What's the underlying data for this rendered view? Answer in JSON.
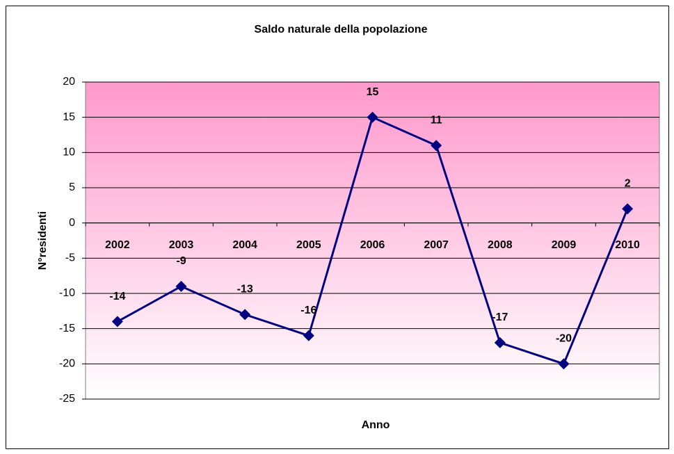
{
  "chart_data": {
    "type": "line",
    "title": "Saldo naturale della popolazione",
    "x_label": "Anno",
    "y_label": "N°residenti",
    "categories": [
      "2002",
      "2003",
      "2004",
      "2005",
      "2006",
      "2007",
      "2008",
      "2009",
      "2010"
    ],
    "series": [
      {
        "name": "Saldo naturale",
        "color": "#000080",
        "values": [
          -14,
          -9,
          -13,
          -16,
          15,
          11,
          -17,
          -20,
          2
        ]
      }
    ],
    "ylim": [
      -25,
      20
    ],
    "yticks": [
      -25,
      -20,
      -15,
      -10,
      -5,
      0,
      5,
      10,
      15,
      20
    ],
    "grid": true
  }
}
